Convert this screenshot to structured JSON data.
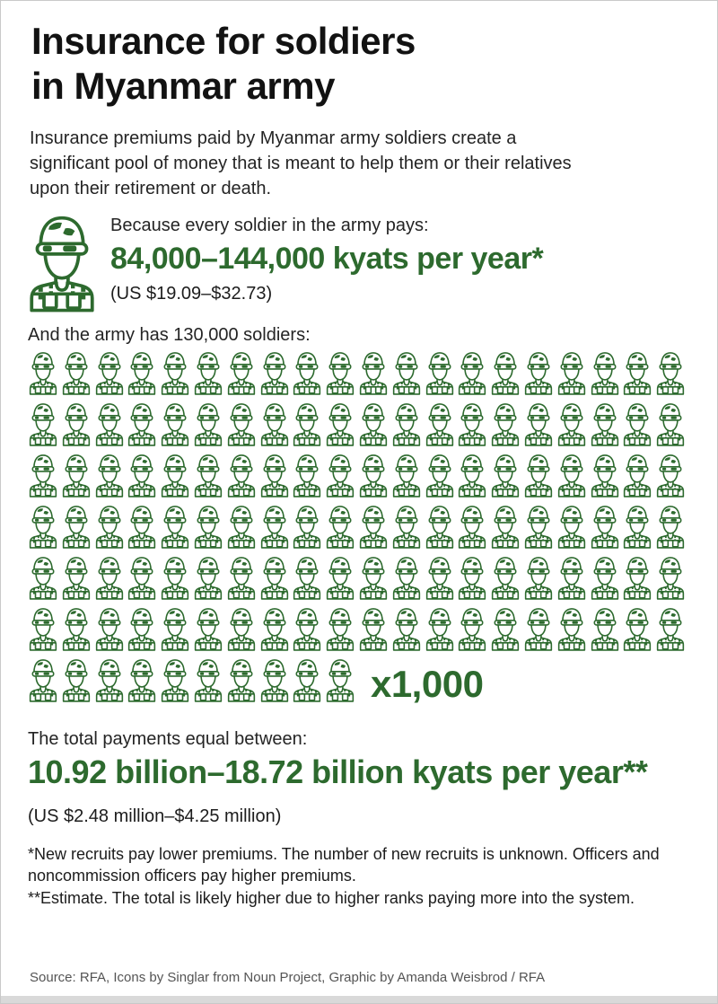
{
  "title": {
    "line1": "Insurance for soldiers",
    "line2": "in Myanmar army"
  },
  "intro": "Insurance premiums paid by Myanmar army soldiers create a significant pool of money that is meant to help them or their relatives upon their retirement or death.",
  "premium": {
    "lead": "Because every soldier in the army pays:",
    "amount": "84,000–144,000 kyats per year*",
    "usd": "(US $19.09–$32.73)"
  },
  "army": {
    "lead": "And the army has 130,000 soldiers:",
    "icon_rows": [
      20,
      20,
      20,
      20,
      20,
      20,
      10
    ],
    "icon_count": 130,
    "multiplier_label": "x1,000"
  },
  "total": {
    "lead": "The total payments equal between:",
    "amount": "10.92 billion–18.72 billion kyats per year**",
    "usd": "(US $2.48 million–$4.25 million)"
  },
  "footnotes": [
    "*New recruits pay lower premiums. The number of new recruits is unknown. Officers and noncommission officers pay higher premiums.",
    "**Estimate. The total is likely higher due to higher ranks paying more into the system."
  ],
  "source": "Source: RFA, Icons by Singlar from Noun Project, Graphic by Amanda Weisbrod / RFA",
  "colors": {
    "accent_green": "#2d6a2e",
    "text": "#1c1c1c",
    "muted": "#545454",
    "border": "#c9c9c9",
    "footer_strip": "#d9d9d9"
  },
  "icons": {
    "soldier": "soldier-icon"
  },
  "chart_data": {
    "type": "pictograph",
    "title": "And the army has 130,000 soldiers:",
    "icon": "soldier",
    "icon_unit_value": 1000,
    "icon_count": 130,
    "rows": [
      20,
      20,
      20,
      20,
      20,
      20,
      10
    ],
    "total_soldiers": 130000,
    "multiplier_label": "x1,000",
    "premium_per_soldier_kyats_per_year": {
      "min": 84000,
      "max": 144000
    },
    "premium_per_soldier_usd": {
      "min": 19.09,
      "max": 32.73
    },
    "total_payments_kyats_billion_per_year": {
      "min": 10.92,
      "max": 18.72
    },
    "total_payments_usd_million": {
      "min": 2.48,
      "max": 4.25
    }
  }
}
